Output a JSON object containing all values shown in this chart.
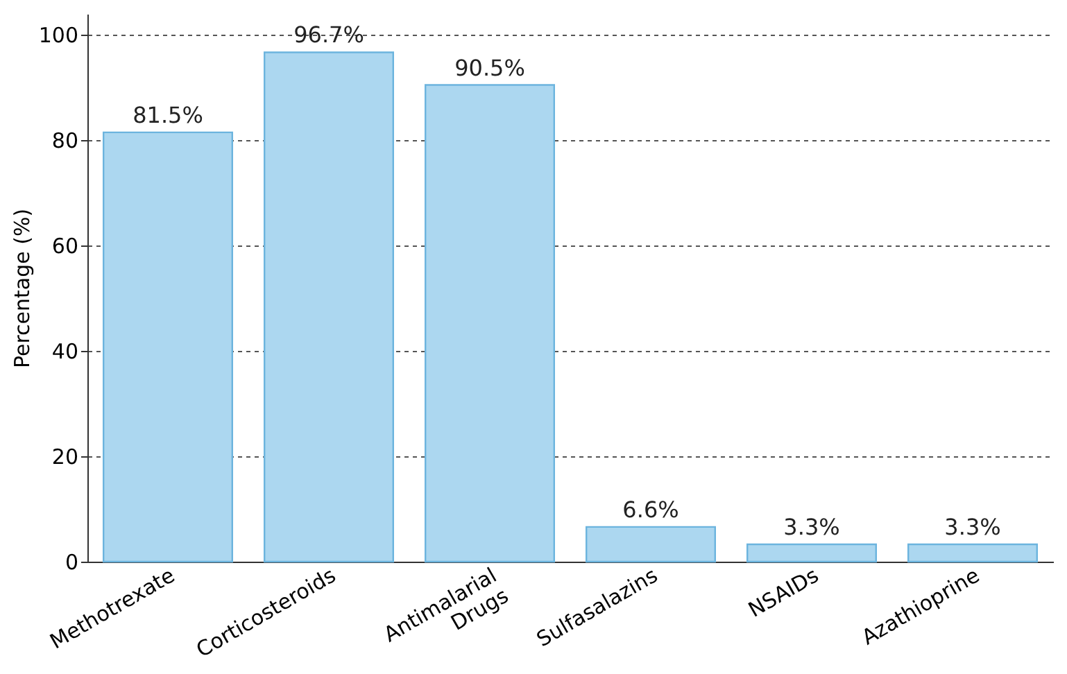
{
  "chart_data": {
    "type": "bar",
    "ylabel": "Percentage (%)",
    "categories": [
      "Methotrexate",
      "Corticosteroids",
      "Antimalarial Drugs",
      "Sulfasalazins",
      "NSAIDs",
      "Azathioprine"
    ],
    "values": [
      81.5,
      96.7,
      90.5,
      6.6,
      3.3,
      3.3
    ],
    "value_labels": [
      "81.5%",
      "96.7%",
      "90.5%",
      "6.6%",
      "3.3%",
      "3.3%"
    ],
    "color": "#acd7f0",
    "ylim": [
      0,
      104
    ],
    "yticks": [
      0,
      20,
      40,
      60,
      80,
      100
    ],
    "grid": "y"
  }
}
